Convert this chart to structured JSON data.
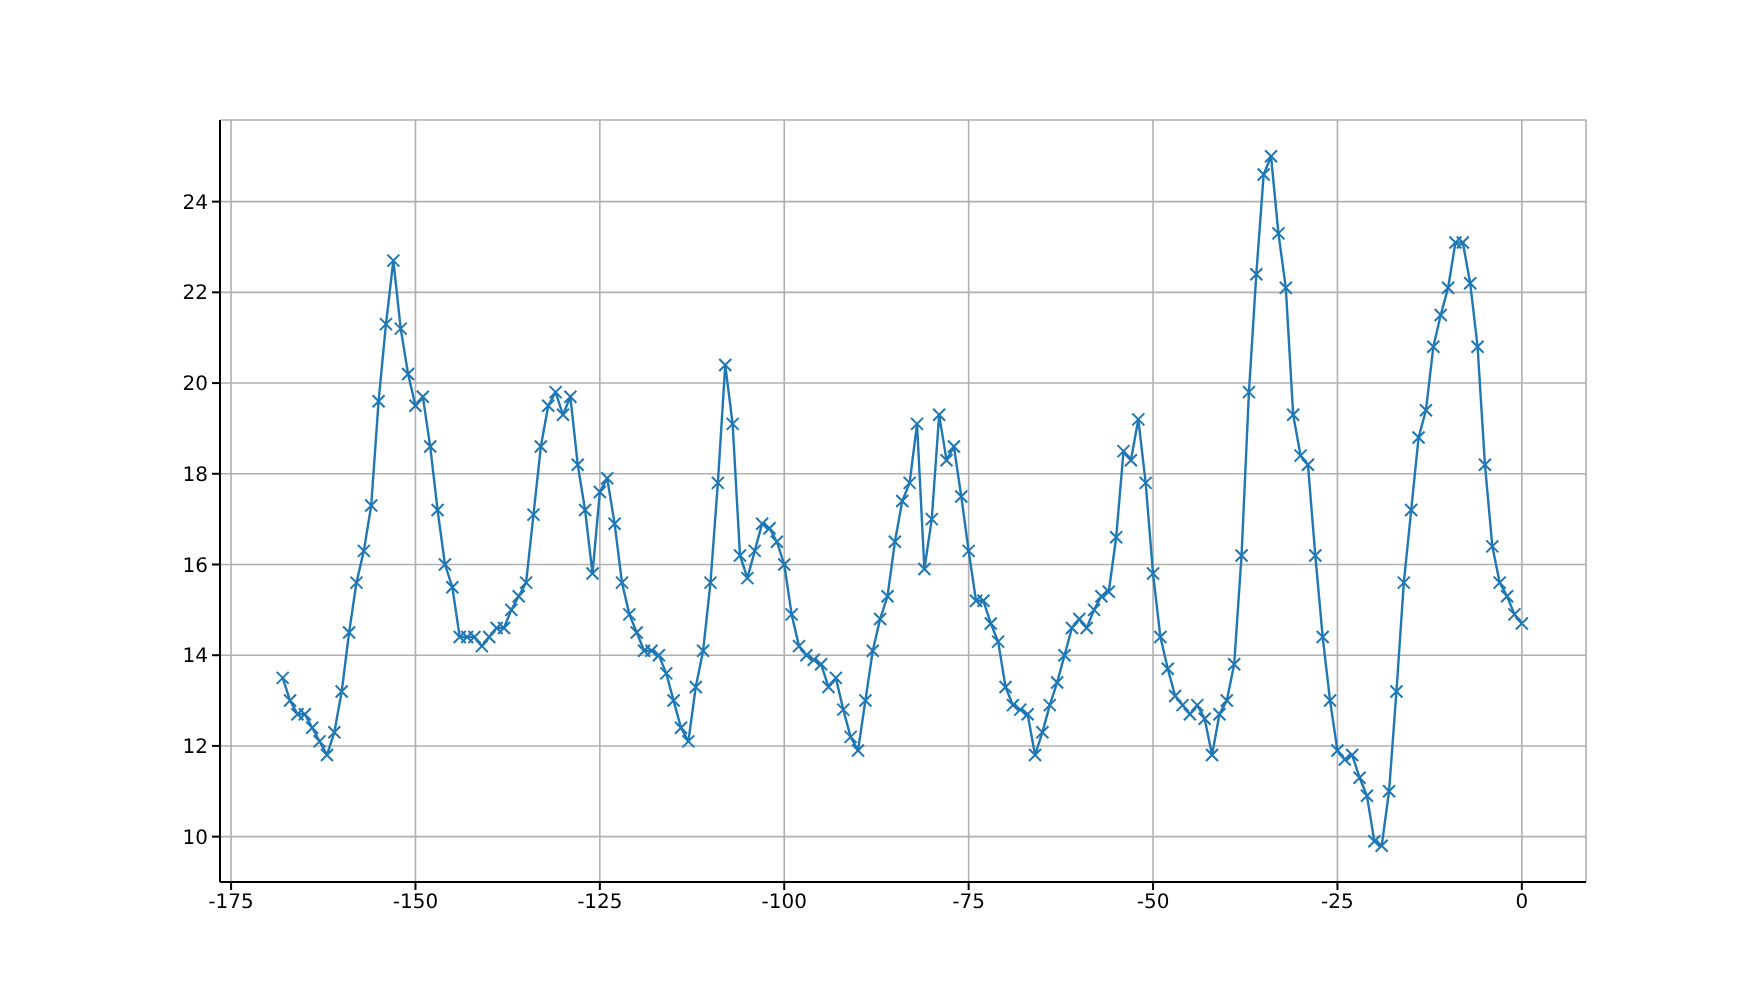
{
  "chart_data": {
    "type": "line",
    "x": [
      -168,
      -167,
      -166,
      -165,
      -164,
      -163,
      -162,
      -161,
      -160,
      -159,
      -158,
      -157,
      -156,
      -155,
      -154,
      -153,
      -152,
      -151,
      -150,
      -149,
      -148,
      -147,
      -146,
      -145,
      -144,
      -143,
      -142,
      -141,
      -140,
      -139,
      -138,
      -137,
      -136,
      -135,
      -134,
      -133,
      -132,
      -131,
      -130,
      -129,
      -128,
      -127,
      -126,
      -125,
      -124,
      -123,
      -122,
      -121,
      -120,
      -119,
      -118,
      -117,
      -116,
      -115,
      -114,
      -113,
      -112,
      -111,
      -110,
      -109,
      -108,
      -107,
      -106,
      -105,
      -104,
      -103,
      -102,
      -101,
      -100,
      -99,
      -98,
      -97,
      -96,
      -95,
      -94,
      -93,
      -92,
      -91,
      -90,
      -89,
      -88,
      -87,
      -86,
      -85,
      -84,
      -83,
      -82,
      -81,
      -80,
      -79,
      -78,
      -77,
      -76,
      -75,
      -74,
      -73,
      -72,
      -71,
      -70,
      -69,
      -68,
      -67,
      -66,
      -65,
      -64,
      -63,
      -62,
      -61,
      -60,
      -59,
      -58,
      -57,
      -56,
      -55,
      -54,
      -53,
      -52,
      -51,
      -50,
      -49,
      -48,
      -47,
      -46,
      -45,
      -44,
      -43,
      -42,
      -41,
      -40,
      -39,
      -38,
      -37,
      -36,
      -35,
      -34,
      -33,
      -32,
      -31,
      -30,
      -29,
      -28,
      -27,
      -26,
      -25,
      -24,
      -23,
      -22,
      -21,
      -20,
      -19,
      -18,
      -17,
      -16,
      -15,
      -14,
      -13,
      -12,
      -11,
      -10,
      -9,
      -8,
      -7,
      -6,
      -5,
      -4,
      -3,
      -2,
      -1,
      0
    ],
    "series": [
      {
        "color": "#1f77b4",
        "values": [
          13.5,
          13.0,
          12.7,
          12.7,
          12.4,
          12.1,
          11.8,
          12.3,
          13.2,
          14.5,
          15.6,
          16.3,
          17.3,
          19.6,
          21.3,
          22.7,
          21.2,
          20.2,
          19.5,
          19.7,
          18.6,
          17.2,
          16.0,
          15.5,
          14.4,
          14.4,
          14.4,
          14.2,
          14.4,
          14.6,
          14.6,
          15.0,
          15.3,
          15.6,
          17.1,
          18.6,
          19.5,
          19.8,
          19.3,
          19.7,
          18.2,
          17.2,
          15.8,
          17.6,
          17.9,
          16.9,
          15.6,
          14.9,
          14.5,
          14.1,
          14.1,
          14.0,
          13.6,
          13.0,
          12.4,
          12.1,
          13.3,
          14.1,
          15.6,
          17.8,
          20.4,
          19.1,
          16.2,
          15.7,
          16.3,
          16.9,
          16.8,
          16.5,
          16.0,
          14.9,
          14.2,
          14.0,
          13.9,
          13.8,
          13.3,
          13.5,
          12.8,
          12.2,
          11.9,
          13.0,
          14.1,
          14.8,
          15.3,
          16.5,
          17.4,
          17.8,
          19.1,
          15.9,
          17.0,
          19.3,
          18.3,
          18.6,
          17.5,
          16.3,
          15.2,
          15.2,
          14.7,
          14.3,
          13.3,
          12.9,
          12.8,
          12.7,
          11.8,
          12.3,
          12.9,
          13.4,
          14.0,
          14.6,
          14.8,
          14.6,
          15.0,
          15.3,
          15.4,
          16.6,
          18.5,
          18.3,
          19.2,
          17.8,
          15.8,
          14.4,
          13.7,
          13.1,
          12.9,
          12.7,
          12.9,
          12.6,
          11.8,
          12.7,
          13.0,
          13.8,
          16.2,
          19.8,
          22.4,
          24.6,
          25.0,
          23.3,
          22.1,
          19.3,
          18.4,
          18.2,
          16.2,
          14.4,
          13.0,
          11.9,
          11.7,
          11.8,
          11.3,
          10.9,
          9.9,
          9.8,
          11.0,
          13.2,
          15.6,
          17.2,
          18.8,
          19.4,
          20.8,
          21.5,
          22.1,
          23.1,
          23.1,
          22.2,
          20.8,
          18.2,
          16.4,
          15.6,
          15.3,
          14.9,
          14.7
        ]
      }
    ],
    "xlim": [
      -176.5,
      8.7
    ],
    "xticks": [
      -175,
      -150,
      -125,
      -100,
      -75,
      -50,
      -25,
      0
    ],
    "ylim": [
      9.0,
      25.8
    ],
    "yticks": [
      10,
      12,
      14,
      16,
      18,
      20,
      22,
      24
    ],
    "grid": true,
    "marker": "cross",
    "line_style": "solid",
    "legend": false
  }
}
